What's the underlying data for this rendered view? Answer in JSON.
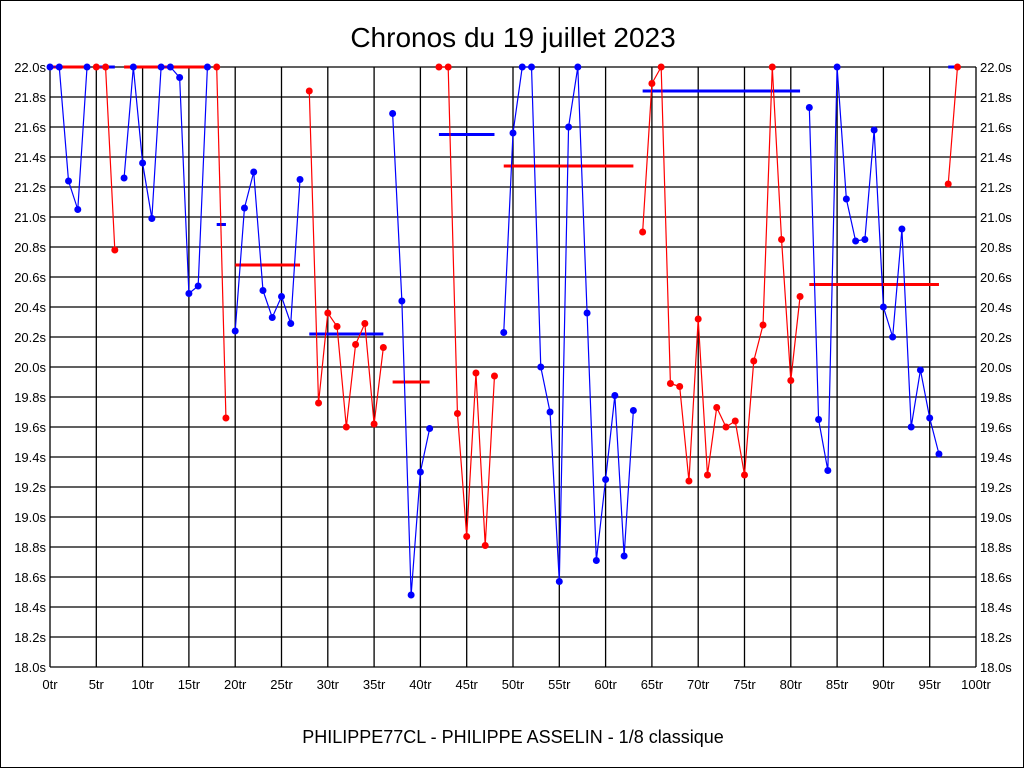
{
  "chart_data": {
    "type": "line",
    "title": "Chronos du 19 juillet 2023",
    "xlabel": "PHILIPPE77CL - PHILIPPE ASSELIN - 1/8 classique",
    "ylabel": "",
    "xlim": [
      0,
      100
    ],
    "ylim": [
      18.0,
      22.0
    ],
    "grid": true,
    "x_ticks": [
      "0tr",
      "5tr",
      "10tr",
      "15tr",
      "20tr",
      "25tr",
      "30tr",
      "35tr",
      "40tr",
      "45tr",
      "50tr",
      "55tr",
      "60tr",
      "65tr",
      "70tr",
      "75tr",
      "80tr",
      "85tr",
      "90tr",
      "95tr",
      "100tr"
    ],
    "y_ticks": [
      "18.0s",
      "18.2s",
      "18.4s",
      "18.6s",
      "18.8s",
      "19.0s",
      "19.2s",
      "19.4s",
      "19.6s",
      "19.8s",
      "20.0s",
      "20.2s",
      "20.4s",
      "20.6s",
      "20.8s",
      "21.0s",
      "21.2s",
      "21.4s",
      "21.6s",
      "21.8s",
      "22.0s"
    ],
    "colors": {
      "blue": "#0000ff",
      "red": "#ff0000"
    },
    "runs": [
      {
        "color": "blue",
        "start": 0,
        "values": [
          22.0,
          22.0,
          21.24,
          21.05,
          22.0
        ],
        "average": 22.0
      },
      {
        "color": "red",
        "start": 5,
        "values": [
          22.0,
          22.0,
          20.78
        ],
        "average": 22.0
      },
      {
        "color": "blue",
        "start": 8,
        "values": [
          21.26,
          22.0,
          21.36,
          20.99,
          22.0,
          22.0,
          21.93,
          20.49,
          20.54,
          22.0
        ],
        "average": 22.0
      },
      {
        "color": "red",
        "start": 18,
        "values": [
          22.0,
          19.66
        ],
        "average": 20.95
      },
      {
        "color": "blue",
        "start": 20,
        "values": [
          20.24,
          21.06,
          21.3,
          20.51,
          20.33,
          20.47,
          20.29,
          21.25
        ],
        "average": 20.68
      },
      {
        "color": "red",
        "start": 28,
        "values": [
          21.84,
          19.76,
          20.36,
          20.27,
          19.6,
          20.15,
          20.29,
          19.62,
          20.13
        ],
        "average": 20.22
      },
      {
        "color": "blue",
        "start": 37,
        "values": [
          21.69,
          20.44,
          18.48,
          19.3,
          19.59
        ],
        "average": 19.9
      },
      {
        "color": "red",
        "start": 42,
        "values": [
          22.0,
          22.0,
          19.69,
          18.87,
          19.96,
          18.81,
          19.94
        ],
        "average": 21.55
      },
      {
        "color": "blue",
        "start": 49,
        "values": [
          20.23,
          21.56,
          22.0,
          22.0,
          20.0,
          19.7,
          18.57,
          21.6,
          22.0,
          20.36,
          18.71,
          19.25,
          19.81,
          18.74,
          19.71
        ],
        "average": 21.34
      },
      {
        "color": "red",
        "start": 64,
        "values": [
          20.9,
          21.89,
          22.0,
          19.89,
          19.87,
          19.24,
          20.32,
          19.28,
          19.73,
          19.6,
          19.64,
          19.28,
          20.04,
          20.28,
          22.0,
          20.85,
          19.91,
          20.47
        ],
        "average": 21.84
      },
      {
        "color": "blue",
        "start": 82,
        "values": [
          21.73,
          19.65,
          19.31,
          22.0,
          21.12,
          20.84,
          20.85,
          21.58,
          20.4,
          20.2,
          20.92,
          19.6,
          19.98,
          19.66,
          19.42
        ],
        "average": 20.55
      },
      {
        "color": "red",
        "start": 97,
        "values": [
          21.22,
          22.0
        ],
        "average": 22.0
      }
    ]
  }
}
